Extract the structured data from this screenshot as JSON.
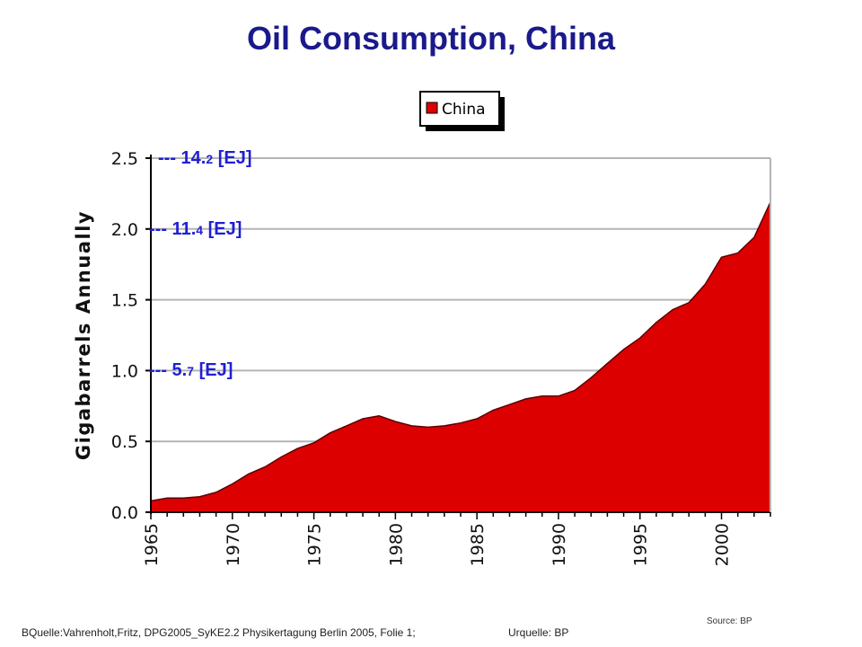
{
  "title": "Oil Consumption, China",
  "ej_markers": [
    {
      "value": 2.5,
      "dashes": "---",
      "int": "14.",
      "dec": "2",
      "unit": " [EJ]"
    },
    {
      "value": 2.0,
      "dashes": "---",
      "int": "11.",
      "dec": "4",
      "unit": " [EJ]"
    },
    {
      "value": 1.0,
      "dashes": "---",
      "int": "5.",
      "dec": "7",
      "unit": " [EJ]"
    }
  ],
  "footer": {
    "source_line": "BQuelle:Vahrenholt,Fritz,  DPG2005_SyKE2.2 Physikertagung Berlin 2005,  Folie 1;",
    "origin_line": "Urquelle:  BP",
    "source_bp": "Source: BP"
  },
  "colors": {
    "fill": "#dd0000",
    "outline": "#5a0000",
    "grid": "#b4b4b4",
    "title": "#1a1a8c",
    "ej_label": "#1f1fd6"
  },
  "chart_data": {
    "type": "area",
    "title": "Oil Consumption, China",
    "xlabel": "",
    "ylabel": "Gigabarrels Annually",
    "xlim": [
      1965,
      2003
    ],
    "ylim": [
      0,
      2.5
    ],
    "x_ticks": [
      "1965",
      "1970",
      "1975",
      "1980",
      "1985",
      "1990",
      "1995",
      "2000"
    ],
    "y_ticks": [
      "0.0",
      "0.5",
      "1.0",
      "1.5",
      "2.0",
      "2.5"
    ],
    "grid": true,
    "legend_position": "top-center",
    "series": [
      {
        "name": "China",
        "x": [
          1965,
          1966,
          1967,
          1968,
          1969,
          1970,
          1971,
          1972,
          1973,
          1974,
          1975,
          1976,
          1977,
          1978,
          1979,
          1980,
          1981,
          1982,
          1983,
          1984,
          1985,
          1986,
          1987,
          1988,
          1989,
          1990,
          1991,
          1992,
          1993,
          1994,
          1995,
          1996,
          1997,
          1998,
          1999,
          2000,
          2001,
          2002,
          2003
        ],
        "values": [
          0.08,
          0.1,
          0.1,
          0.11,
          0.14,
          0.2,
          0.27,
          0.32,
          0.39,
          0.45,
          0.49,
          0.56,
          0.61,
          0.66,
          0.68,
          0.64,
          0.61,
          0.6,
          0.61,
          0.63,
          0.66,
          0.72,
          0.76,
          0.8,
          0.82,
          0.82,
          0.86,
          0.95,
          1.05,
          1.15,
          1.23,
          1.34,
          1.43,
          1.48,
          1.61,
          1.8,
          1.83,
          1.94,
          2.19
        ]
      }
    ]
  }
}
